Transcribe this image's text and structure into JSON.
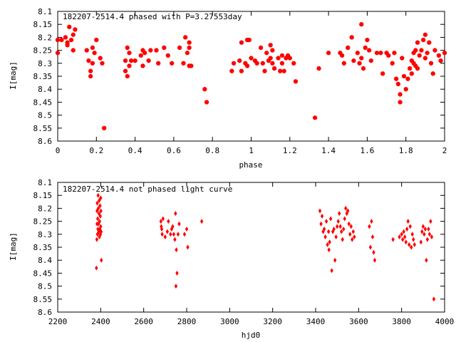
{
  "chart_data": [
    {
      "type": "scatter",
      "title": "182207-2514.4 phased with P=3.27553day",
      "xlabel": "phase",
      "ylabel": "I[mag]",
      "xlim": [
        0,
        2
      ],
      "ylim": [
        8.6,
        8.1
      ],
      "y_inverted": true,
      "xticks": [
        "0",
        "0.2",
        "0.4",
        "0.6",
        "0.8",
        "1",
        "1.2",
        "1.4",
        "1.6",
        "1.8",
        "2"
      ],
      "yticks": [
        "8.1",
        "8.15",
        "8.2",
        "8.25",
        "8.3",
        "8.35",
        "8.4",
        "8.45",
        "8.5",
        "8.55",
        "8.6"
      ],
      "marker_color": "#ff0000",
      "marker": "filled-octagon",
      "points": [
        [
          0.0,
          8.21
        ],
        [
          0.0,
          8.26
        ],
        [
          0.02,
          8.21
        ],
        [
          0.04,
          8.2
        ],
        [
          0.05,
          8.23
        ],
        [
          0.05,
          8.22
        ],
        [
          0.06,
          8.16
        ],
        [
          0.07,
          8.21
        ],
        [
          0.08,
          8.19
        ],
        [
          0.08,
          8.25
        ],
        [
          0.09,
          8.17
        ],
        [
          0.15,
          8.25
        ],
        [
          0.16,
          8.29
        ],
        [
          0.17,
          8.35
        ],
        [
          0.17,
          8.33
        ],
        [
          0.18,
          8.3
        ],
        [
          0.18,
          8.24
        ],
        [
          0.19,
          8.26
        ],
        [
          0.2,
          8.21
        ],
        [
          0.22,
          8.28
        ],
        [
          0.23,
          8.3
        ],
        [
          0.24,
          8.55
        ],
        [
          0.35,
          8.33
        ],
        [
          0.35,
          8.29
        ],
        [
          0.36,
          8.24
        ],
        [
          0.36,
          8.35
        ],
        [
          0.37,
          8.31
        ],
        [
          0.37,
          8.26
        ],
        [
          0.38,
          8.29
        ],
        [
          0.4,
          8.29
        ],
        [
          0.43,
          8.27
        ],
        [
          0.44,
          8.25
        ],
        [
          0.44,
          8.31
        ],
        [
          0.45,
          8.26
        ],
        [
          0.47,
          8.29
        ],
        [
          0.48,
          8.25
        ],
        [
          0.51,
          8.25
        ],
        [
          0.52,
          8.3
        ],
        [
          0.55,
          8.24
        ],
        [
          0.57,
          8.27
        ],
        [
          0.59,
          8.3
        ],
        [
          0.63,
          8.24
        ],
        [
          0.65,
          8.3
        ],
        [
          0.66,
          8.2
        ],
        [
          0.67,
          8.26
        ],
        [
          0.68,
          8.22
        ],
        [
          0.68,
          8.24
        ],
        [
          0.68,
          8.31
        ],
        [
          0.69,
          8.31
        ],
        [
          0.76,
          8.4
        ],
        [
          0.77,
          8.45
        ],
        [
          0.9,
          8.33
        ],
        [
          0.91,
          8.3
        ],
        [
          0.94,
          8.29
        ],
        [
          0.95,
          8.33
        ],
        [
          0.95,
          8.22
        ],
        [
          0.97,
          8.3
        ],
        [
          0.98,
          8.31
        ],
        [
          0.98,
          8.21
        ],
        [
          0.99,
          8.21
        ],
        [
          1.0,
          8.28
        ],
        [
          1.02,
          8.29
        ],
        [
          1.03,
          8.3
        ],
        [
          1.05,
          8.24
        ],
        [
          1.06,
          8.3
        ],
        [
          1.07,
          8.33
        ],
        [
          1.08,
          8.26
        ],
        [
          1.09,
          8.29
        ],
        [
          1.1,
          8.23
        ],
        [
          1.1,
          8.28
        ],
        [
          1.11,
          8.25
        ],
        [
          1.11,
          8.3
        ],
        [
          1.12,
          8.32
        ],
        [
          1.14,
          8.28
        ],
        [
          1.15,
          8.33
        ],
        [
          1.16,
          8.27
        ],
        [
          1.16,
          8.3
        ],
        [
          1.17,
          8.33
        ],
        [
          1.18,
          8.28
        ],
        [
          1.19,
          8.27
        ],
        [
          1.2,
          8.28
        ],
        [
          1.22,
          8.3
        ],
        [
          1.23,
          8.37
        ],
        [
          1.33,
          8.51
        ],
        [
          1.35,
          8.32
        ],
        [
          1.4,
          8.26
        ],
        [
          1.46,
          8.26
        ],
        [
          1.47,
          8.27
        ],
        [
          1.48,
          8.3
        ],
        [
          1.5,
          8.24
        ],
        [
          1.52,
          8.2
        ],
        [
          1.53,
          8.29
        ],
        [
          1.55,
          8.26
        ],
        [
          1.56,
          8.3
        ],
        [
          1.57,
          8.28
        ],
        [
          1.57,
          8.15
        ],
        [
          1.58,
          8.32
        ],
        [
          1.59,
          8.24
        ],
        [
          1.6,
          8.21
        ],
        [
          1.61,
          8.25
        ],
        [
          1.62,
          8.29
        ],
        [
          1.65,
          8.26
        ],
        [
          1.67,
          8.26
        ],
        [
          1.68,
          8.34
        ],
        [
          1.7,
          8.26
        ],
        [
          1.71,
          8.27
        ],
        [
          1.73,
          8.3
        ],
        [
          1.74,
          8.26
        ],
        [
          1.75,
          8.36
        ],
        [
          1.76,
          8.38
        ],
        [
          1.77,
          8.42
        ],
        [
          1.77,
          8.45
        ],
        [
          1.78,
          8.28
        ],
        [
          1.79,
          8.35
        ],
        [
          1.8,
          8.4
        ],
        [
          1.81,
          8.36
        ],
        [
          1.82,
          8.32
        ],
        [
          1.83,
          8.34
        ],
        [
          1.83,
          8.29
        ],
        [
          1.84,
          8.3
        ],
        [
          1.84,
          8.26
        ],
        [
          1.85,
          8.31
        ],
        [
          1.85,
          8.25
        ],
        [
          1.86,
          8.32
        ],
        [
          1.86,
          8.22
        ],
        [
          1.87,
          8.27
        ],
        [
          1.88,
          8.25
        ],
        [
          1.89,
          8.21
        ],
        [
          1.9,
          8.28
        ],
        [
          1.9,
          8.19
        ],
        [
          1.91,
          8.26
        ],
        [
          1.92,
          8.22
        ],
        [
          1.93,
          8.3
        ],
        [
          1.94,
          8.34
        ],
        [
          1.95,
          8.25
        ],
        [
          1.97,
          8.27
        ],
        [
          1.98,
          8.29
        ],
        [
          2.0,
          8.26
        ]
      ]
    },
    {
      "type": "scatter",
      "title": "182207-2514.4 not phased light curve",
      "xlabel": "hjd0",
      "ylabel": "I[mag]",
      "xlim": [
        2200,
        4000
      ],
      "ylim": [
        8.6,
        8.1
      ],
      "y_inverted": true,
      "xticks": [
        "2200",
        "2400",
        "2600",
        "2800",
        "3000",
        "3200",
        "3400",
        "3600",
        "3800",
        "4000"
      ],
      "yticks": [
        "8.1",
        "8.15",
        "8.2",
        "8.25",
        "8.3",
        "8.35",
        "8.4",
        "8.45",
        "8.5",
        "8.55",
        "8.6"
      ],
      "marker_color": "#ff0000",
      "marker": "diamond",
      "points": [
        [
          2380,
          8.43
        ],
        [
          2382,
          8.32
        ],
        [
          2383,
          8.26
        ],
        [
          2383,
          8.21
        ],
        [
          2384,
          8.18
        ],
        [
          2385,
          8.3
        ],
        [
          2386,
          8.24
        ],
        [
          2387,
          8.28
        ],
        [
          2388,
          8.15
        ],
        [
          2389,
          8.2
        ],
        [
          2390,
          8.26
        ],
        [
          2391,
          8.29
        ],
        [
          2392,
          8.22
        ],
        [
          2393,
          8.17
        ],
        [
          2394,
          8.31
        ],
        [
          2395,
          8.25
        ],
        [
          2396,
          8.28
        ],
        [
          2397,
          8.19
        ],
        [
          2398,
          8.23
        ],
        [
          2399,
          8.3
        ],
        [
          2400,
          8.16
        ],
        [
          2400,
          8.27
        ],
        [
          2401,
          8.21
        ],
        [
          2402,
          8.29
        ],
        [
          2403,
          8.4
        ],
        [
          2680,
          8.25
        ],
        [
          2682,
          8.27
        ],
        [
          2684,
          8.28
        ],
        [
          2686,
          8.3
        ],
        [
          2690,
          8.24
        ],
        [
          2700,
          8.31
        ],
        [
          2710,
          8.29
        ],
        [
          2715,
          8.25
        ],
        [
          2725,
          8.3
        ],
        [
          2730,
          8.28
        ],
        [
          2735,
          8.27
        ],
        [
          2740,
          8.3
        ],
        [
          2745,
          8.32
        ],
        [
          2748,
          8.22
        ],
        [
          2750,
          8.5
        ],
        [
          2752,
          8.36
        ],
        [
          2755,
          8.45
        ],
        [
          2760,
          8.3
        ],
        [
          2765,
          8.26
        ],
        [
          2790,
          8.3
        ],
        [
          2800,
          8.28
        ],
        [
          2805,
          8.35
        ],
        [
          2870,
          8.25
        ],
        [
          3420,
          8.21
        ],
        [
          3425,
          8.26
        ],
        [
          3430,
          8.23
        ],
        [
          3435,
          8.29
        ],
        [
          3440,
          8.28
        ],
        [
          3445,
          8.31
        ],
        [
          3450,
          8.25
        ],
        [
          3455,
          8.34
        ],
        [
          3460,
          8.29
        ],
        [
          3462,
          8.36
        ],
        [
          3465,
          8.33
        ],
        [
          3470,
          8.24
        ],
        [
          3475,
          8.44
        ],
        [
          3480,
          8.29
        ],
        [
          3485,
          8.28
        ],
        [
          3490,
          8.4
        ],
        [
          3495,
          8.31
        ],
        [
          3500,
          8.27
        ],
        [
          3505,
          8.25
        ],
        [
          3510,
          8.22
        ],
        [
          3515,
          8.27
        ],
        [
          3520,
          8.29
        ],
        [
          3525,
          8.32
        ],
        [
          3530,
          8.28
        ],
        [
          3535,
          8.24
        ],
        [
          3540,
          8.2
        ],
        [
          3545,
          8.22
        ],
        [
          3550,
          8.21
        ],
        [
          3555,
          8.26
        ],
        [
          3560,
          8.3
        ],
        [
          3565,
          8.27
        ],
        [
          3570,
          8.32
        ],
        [
          3575,
          8.29
        ],
        [
          3580,
          8.31
        ],
        [
          3650,
          8.27
        ],
        [
          3655,
          8.35
        ],
        [
          3660,
          8.25
        ],
        [
          3665,
          8.31
        ],
        [
          3670,
          8.37
        ],
        [
          3675,
          8.4
        ],
        [
          3760,
          8.32
        ],
        [
          3790,
          8.31
        ],
        [
          3800,
          8.3
        ],
        [
          3805,
          8.32
        ],
        [
          3810,
          8.29
        ],
        [
          3815,
          8.31
        ],
        [
          3820,
          8.33
        ],
        [
          3825,
          8.28
        ],
        [
          3830,
          8.25
        ],
        [
          3835,
          8.34
        ],
        [
          3840,
          8.27
        ],
        [
          3845,
          8.35
        ],
        [
          3850,
          8.3
        ],
        [
          3855,
          8.32
        ],
        [
          3860,
          8.34
        ],
        [
          3890,
          8.33
        ],
        [
          3895,
          8.29
        ],
        [
          3900,
          8.27
        ],
        [
          3905,
          8.3
        ],
        [
          3910,
          8.28
        ],
        [
          3915,
          8.4
        ],
        [
          3920,
          8.32
        ],
        [
          3925,
          8.28
        ],
        [
          3930,
          8.3
        ],
        [
          3935,
          8.25
        ],
        [
          3940,
          8.31
        ],
        [
          3950,
          8.55
        ]
      ]
    }
  ]
}
